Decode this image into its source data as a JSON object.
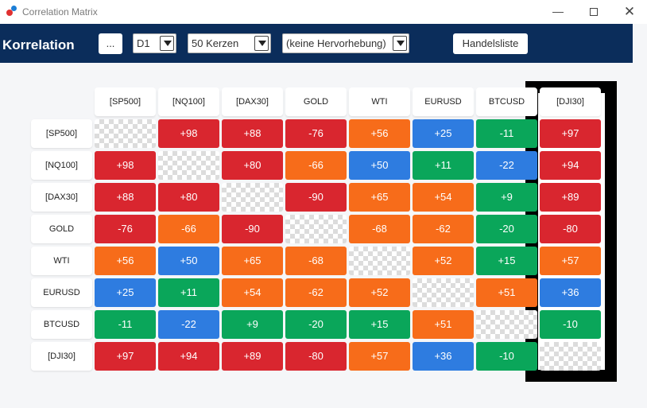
{
  "window": {
    "title": "Correlation Matrix",
    "minimize": "—",
    "maximize": "",
    "close": "✕",
    "icon": "app-dots-icon"
  },
  "toolbar": {
    "heading": "Korrelation",
    "more_button": "...",
    "timeframe": "D1",
    "candles": "50 Kerzen",
    "highlight": "(keine Hervorhebung)",
    "trade_list_button": "Handelsliste"
  },
  "colors": {
    "red": "#d9262f",
    "orange": "#f76c1a",
    "green": "#0aa65a",
    "blue": "#2e7ce0"
  },
  "symbols": [
    "[SP500]",
    "[NQ100]",
    "[DAX30]",
    "GOLD",
    "WTI",
    "EURUSD",
    "BTCUSD",
    "[DJI30]"
  ],
  "matrix": [
    [
      null,
      "+98",
      "+88",
      "-76",
      "+56",
      "+25",
      "-11",
      "+97"
    ],
    [
      "+98",
      null,
      "+80",
      "-66",
      "+50",
      "+11",
      "-22",
      "+94"
    ],
    [
      "+88",
      "+80",
      null,
      "-90",
      "+65",
      "+54",
      "+9",
      "+89"
    ],
    [
      "-76",
      "-66",
      "-90",
      null,
      "-68",
      "-62",
      "-20",
      "-80"
    ],
    [
      "+56",
      "+50",
      "+65",
      "-68",
      null,
      "+52",
      "+15",
      "+57"
    ],
    [
      "+25",
      "+11",
      "+54",
      "-62",
      "+52",
      null,
      "+51",
      "+36"
    ],
    [
      "-11",
      "-22",
      "+9",
      "-20",
      "+15",
      "+51",
      null,
      "-10"
    ],
    [
      "+97",
      "+94",
      "+89",
      "-80",
      "+57",
      "+36",
      "-10",
      null
    ]
  ],
  "matrix_colors": [
    [
      null,
      "red",
      "red",
      "red",
      "orange",
      "blue",
      "green",
      "red"
    ],
    [
      "red",
      null,
      "red",
      "orange",
      "blue",
      "green",
      "blue",
      "red"
    ],
    [
      "red",
      "red",
      null,
      "red",
      "orange",
      "orange",
      "green",
      "red"
    ],
    [
      "red",
      "orange",
      "red",
      null,
      "orange",
      "orange",
      "green",
      "red"
    ],
    [
      "orange",
      "blue",
      "orange",
      "orange",
      null,
      "orange",
      "green",
      "orange"
    ],
    [
      "blue",
      "green",
      "orange",
      "orange",
      "orange",
      null,
      "orange",
      "blue"
    ],
    [
      "green",
      "blue",
      "green",
      "green",
      "green",
      "orange",
      null,
      "green"
    ],
    [
      "red",
      "red",
      "red",
      "red",
      "orange",
      "blue",
      "green",
      null
    ]
  ]
}
